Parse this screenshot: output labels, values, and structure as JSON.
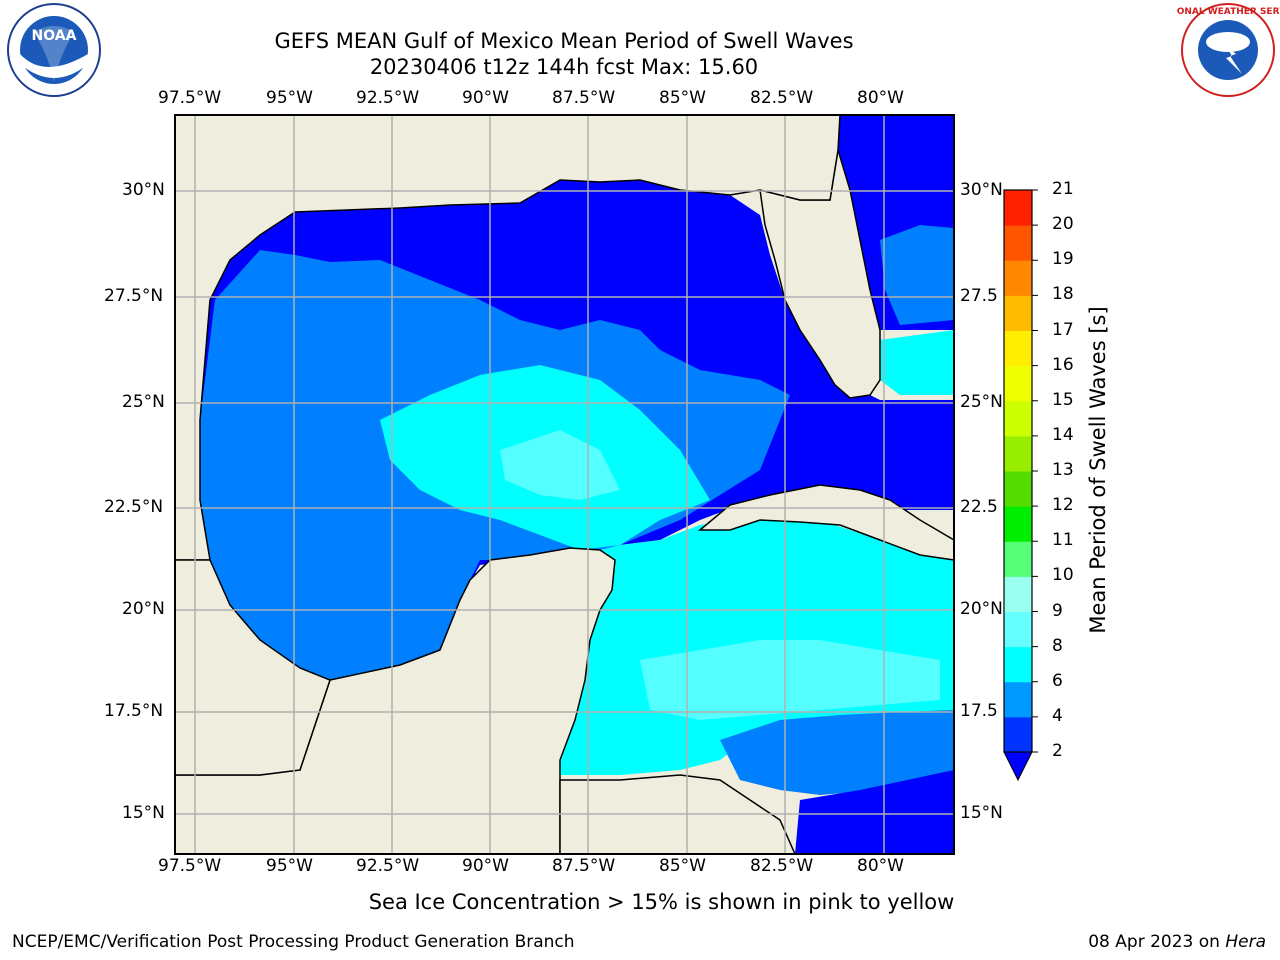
{
  "title": {
    "line1": "GEFS MEAN Gulf of Mexico Mean Period of Swell Waves",
    "line2": "20230406 t12z 144h fcst   Max: 15.60"
  },
  "logos": {
    "left": "noaa-logo",
    "left_text": "NOAA",
    "right": "nws-logo",
    "right_text": "NATIONAL WEATHER SERVICE"
  },
  "axes": {
    "lon_ticks": [
      "97.5°W",
      "95°W",
      "92.5°W",
      "90°W",
      "87.5°W",
      "85°W",
      "82.5°W",
      "80°W"
    ],
    "lat_ticks": [
      "30°N",
      "27.5°N",
      "25°N",
      "22.5°N",
      "20°N",
      "17.5°N",
      "15°N"
    ],
    "lat_ticks_right": [
      "30°N",
      "27.5",
      "25°N",
      "22.5",
      "20°N",
      "17.5",
      "15°N"
    ],
    "lon_range": [
      -98,
      -78.3
    ],
    "lat_range": [
      14,
      31.8
    ]
  },
  "colorbar": {
    "label": "Mean Period of Swell Waves [s]",
    "ticks": [
      "2",
      "4",
      "6",
      "8",
      "9",
      "10",
      "11",
      "12",
      "13",
      "14",
      "15",
      "16",
      "17",
      "18",
      "19",
      "20",
      "21"
    ],
    "colors": [
      "#0033ff",
      "#0099ff",
      "#00ffff",
      "#66ffff",
      "#99ffee",
      "#55ff77",
      "#00ee00",
      "#55dd00",
      "#99ee00",
      "#ccff00",
      "#eeff00",
      "#ffee00",
      "#ffbb00",
      "#ff8800",
      "#ff5500",
      "#ff2200"
    ],
    "under_color": "#0000ff",
    "extend": "min"
  },
  "colors": {
    "land": "#eeedde",
    "ocean_deep": "#0000ff",
    "ocean_2_4": "#0080ff",
    "ocean_4_6": "#00ffff",
    "ocean_6_8": "#55ffff",
    "grid": "#b0b0b0"
  },
  "footer": {
    "note": "Sea Ice Concentration > 15% is shown in pink to yellow",
    "credit": "NCEP/EMC/Verification Post Processing Product Generation Branch",
    "date": "08 Apr 2023 on",
    "host": "Hera"
  }
}
